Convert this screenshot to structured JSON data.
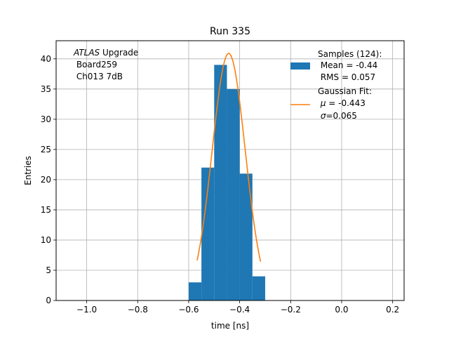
{
  "chart_data": {
    "type": "bar",
    "title": "Run 335",
    "xlabel": "time [ns]",
    "ylabel": "Entries",
    "xlim": [
      -1.12,
      0.245
    ],
    "ylim": [
      0,
      43
    ],
    "grid": true,
    "xticks": [
      -1.0,
      -0.8,
      -0.6,
      -0.4,
      -0.2,
      0.0,
      0.2
    ],
    "xtick_labels": [
      "−1.0",
      "−0.8",
      "−0.6",
      "−0.4",
      "−0.2",
      "0.0",
      "0.2"
    ],
    "yticks": [
      0,
      5,
      10,
      15,
      20,
      25,
      30,
      35,
      40
    ],
    "ytick_labels": [
      "0",
      "5",
      "10",
      "15",
      "20",
      "25",
      "30",
      "35",
      "40"
    ],
    "histogram": {
      "bin_edges": [
        -0.6,
        -0.55,
        -0.5,
        -0.45,
        -0.4,
        -0.35,
        -0.3,
        -0.25
      ],
      "counts": [
        3,
        22,
        39,
        35,
        21,
        4,
        0
      ],
      "color": "#1f77b4"
    },
    "fit": {
      "mu": -0.443,
      "sigma": 0.065,
      "amplitude": 40.9,
      "x_range": [
        -0.567,
        -0.318
      ],
      "color": "#ff7f0e"
    },
    "annotation": {
      "italic": "ATLAS",
      "rest": " Upgrade",
      "line2": " Board259",
      "line3": " Ch013 7dB"
    },
    "legend": {
      "placement": "top-right",
      "samples_label": "Samples (124):",
      "samples_mean": " Mean = -0.44",
      "samples_rms": " RMS = 0.057",
      "fit_label": "Gaussian Fit:",
      "fit_mu_symbol": "μ",
      "fit_mu_value": " = -0.443",
      "fit_sigma_symbol": "σ",
      "fit_sigma_value": "=0.065"
    }
  }
}
